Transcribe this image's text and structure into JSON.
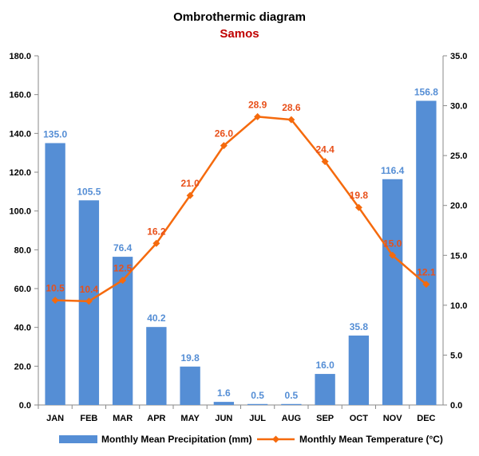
{
  "chart_data": {
    "type": "bar+line",
    "title": "Ombrothermic diagram",
    "subtitle": "Samos",
    "categories": [
      "JAN",
      "FEB",
      "MAR",
      "APR",
      "MAY",
      "JUN",
      "JUL",
      "AUG",
      "SEP",
      "OCT",
      "NOV",
      "DEC"
    ],
    "series": [
      {
        "name": "Monthly Mean Precipitation (mm)",
        "type": "bar",
        "axis": "left",
        "color": "#558ed5",
        "label_color": "#558ed5",
        "values": [
          135.0,
          105.5,
          76.4,
          40.2,
          19.8,
          1.6,
          0.5,
          0.5,
          16.0,
          35.8,
          116.4,
          156.8
        ],
        "labels": [
          "135.0",
          "105.5",
          "76.4",
          "40.2",
          "19.8",
          "1.6",
          "0.5",
          "0.5",
          "16.0",
          "35.8",
          "116.4",
          "156.8"
        ]
      },
      {
        "name": "Monthly Mean Temperature (°C)",
        "type": "line",
        "axis": "right",
        "color": "#f56a0d",
        "label_color": "#e8501a",
        "values": [
          10.5,
          10.4,
          12.5,
          16.2,
          21.0,
          26.0,
          28.9,
          28.6,
          24.4,
          19.8,
          15.0,
          12.1
        ],
        "labels": [
          "10.5",
          "10.4",
          "12.5",
          "16.2",
          "21.0",
          "26.0",
          "28.9",
          "28.6",
          "24.4",
          "19.8",
          "15.0",
          "12.1"
        ]
      }
    ],
    "y_left": {
      "lim": [
        0,
        180
      ],
      "ticks": [
        0,
        20,
        40,
        60,
        80,
        100,
        120,
        140,
        160,
        180
      ],
      "tick_labels": [
        "0.0",
        "20.0",
        "40.0",
        "60.0",
        "80.0",
        "100.0",
        "120.0",
        "140.0",
        "160.0",
        "180.0"
      ]
    },
    "y_right": {
      "lim": [
        0,
        35
      ],
      "ticks": [
        0,
        5,
        10,
        15,
        20,
        25,
        30,
        35
      ],
      "tick_labels": [
        "0.0",
        "5.0",
        "10.0",
        "15.0",
        "20.0",
        "25.0",
        "30.0",
        "35.0"
      ]
    },
    "grid": false,
    "legend_position": "bottom"
  }
}
